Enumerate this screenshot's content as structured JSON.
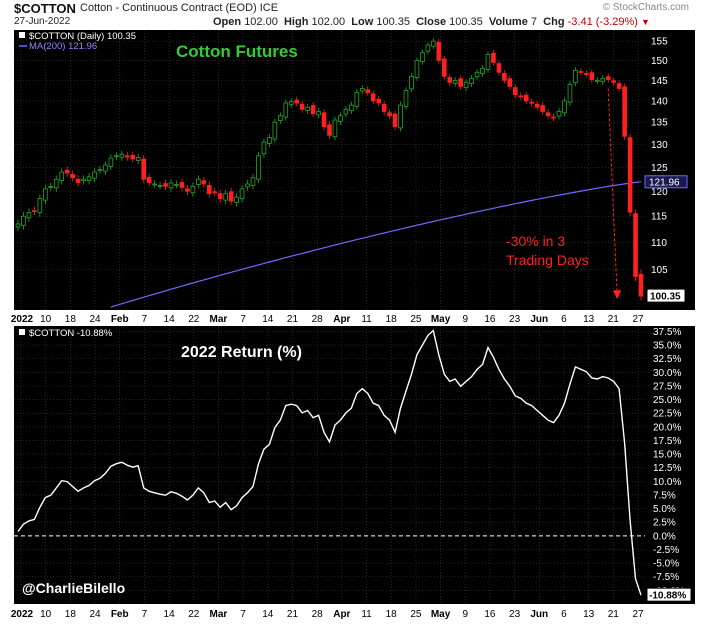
{
  "header": {
    "symbol": "$COTTON",
    "description": "Cotton - Continuous Contract (EOD)",
    "exchange": "ICE",
    "date": "27-Jun-2022",
    "open_label": "Open",
    "open": "102.00",
    "high_label": "High",
    "high": "102.00",
    "low_label": "Low",
    "low": "100.35",
    "close_label": "Close",
    "close": "100.35",
    "volume_label": "Volume",
    "volume": "7",
    "chg_label": "Chg",
    "chg": "-3.41 (-3.29%)",
    "brand": "© StockCharts.com"
  },
  "colors": {
    "up": "#22aa22",
    "down": "#ff2020",
    "ma": "#6b6bff",
    "title_green": "#33cc33",
    "annotation": "#ff2020",
    "return_line": "#ffffff"
  },
  "chart_data": [
    {
      "type": "candlestick",
      "title": "Cotton Futures",
      "legend": [
        "$COTTON (Daily) 100.35",
        "MA(200) 121.96"
      ],
      "price_scale": "log",
      "ylim": [
        98,
        158
      ],
      "yticks": [
        105,
        110,
        115,
        120,
        125,
        130,
        135,
        140,
        145,
        150,
        155
      ],
      "x_labels": [
        "2022",
        "10",
        "18",
        "24",
        "Feb",
        "7",
        "14",
        "22",
        "Mar",
        "7",
        "14",
        "21",
        "28",
        "Apr",
        "11",
        "18",
        "25",
        "May",
        "9",
        "16",
        "23",
        "Jun",
        "6",
        "13",
        "21",
        "27"
      ],
      "last_value_label": "100.35",
      "ma_value_label": "121.96",
      "annotation": [
        "-30% in 3",
        "Trading Days"
      ],
      "close_series": [
        113.5,
        115,
        115.7,
        116,
        118.5,
        120.5,
        121,
        122.5,
        124,
        123.8,
        122.8,
        121.8,
        122.5,
        123,
        124,
        124.5,
        125.5,
        127,
        127.5,
        127.8,
        127.2,
        126.8,
        127.1,
        122.5,
        121.8,
        121.5,
        121.2,
        121,
        121.7,
        121.4,
        120.8,
        120,
        121,
        122.5,
        121.5,
        119.5,
        119.8,
        118.5,
        119.5,
        118,
        118.8,
        120.5,
        121.5,
        122.8,
        127.5,
        130.5,
        131.5,
        135,
        136.5,
        139.5,
        139.8,
        139.5,
        138,
        138.5,
        137,
        137.5,
        134,
        132,
        135.5,
        136.5,
        138,
        139,
        142,
        143,
        142,
        140,
        139.5,
        137.5,
        136.5,
        134,
        139,
        142.5,
        146,
        150,
        152,
        154,
        155,
        150,
        146,
        144.5,
        145,
        143.5,
        144.5,
        145.5,
        147,
        148,
        151.5,
        149.5,
        147,
        145,
        143.5,
        141.5,
        141,
        140,
        139.5,
        138.5,
        137.5,
        136.5,
        136,
        137.5,
        140,
        144,
        147.5,
        147,
        146.5,
        145.2,
        145,
        145.5,
        145.2,
        144.5,
        143,
        131.8,
        115.8,
        103.76,
        100.35
      ],
      "ma200_start": 98.5,
      "ma200_end": 121.96
    },
    {
      "type": "line",
      "title": "2022 Return (%)",
      "legend": [
        "$COTTON -10.88%"
      ],
      "ylim": [
        -12.5,
        38.5
      ],
      "yticks": [
        37.5,
        35.0,
        32.5,
        30.0,
        27.5,
        25.0,
        22.5,
        20.0,
        17.5,
        15.0,
        12.5,
        10.0,
        7.5,
        5.0,
        2.5,
        0.0,
        -2.5,
        -5.0,
        -7.5,
        -10.0
      ],
      "last_value_label": "-10.88%",
      "x_labels": [
        "2022",
        "10",
        "18",
        "24",
        "Feb",
        "7",
        "14",
        "22",
        "Mar",
        "7",
        "14",
        "21",
        "28",
        "Apr",
        "11",
        "18",
        "25",
        "May",
        "9",
        "16",
        "23",
        "Jun",
        "6",
        "13",
        "21",
        "27"
      ],
      "credit": "@CharlieBilello",
      "base_value": 112.6
    }
  ]
}
